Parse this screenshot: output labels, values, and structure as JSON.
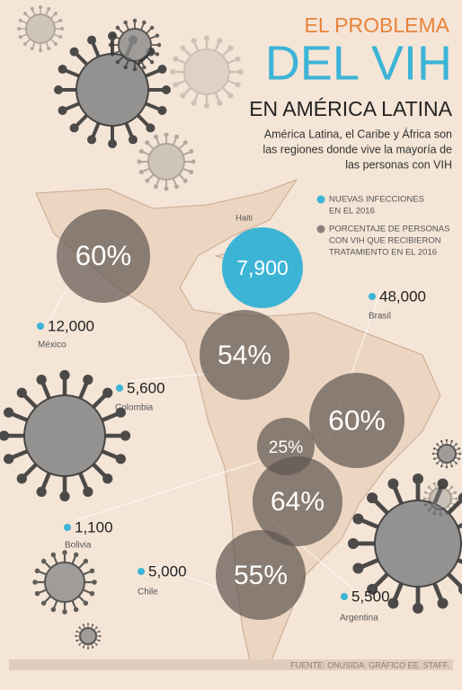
{
  "header": {
    "kicker": "EL PROBLEMA",
    "title": "DEL VIH",
    "subtitle": "EN AMÉRICA LATINA",
    "description": [
      "América Latina, el Caribe y África son",
      "las regiones donde vive la mayoría de",
      "las personas con VIH"
    ]
  },
  "legend": [
    {
      "lines": [
        "NUEVAS INFECCIONES",
        "EN EL 2016"
      ]
    },
    {
      "lines": [
        "PORCENTAJE DE PERSONAS",
        "CON VIH QUE RECIBIERON",
        "TRATAMIENTO EN EL 2016"
      ]
    }
  ],
  "regions": [
    {
      "name": "México",
      "infections": "12,000",
      "treatment": "60%"
    },
    {
      "name": "Haiti",
      "infections": "7,900"
    },
    {
      "name": "Brasil",
      "infections": "48,000",
      "treatment": "60%"
    },
    {
      "name": "Colombia",
      "infections": "5,600",
      "treatment": "54%"
    },
    {
      "name": "Bolivia",
      "infections": "1,100",
      "treatment": "25%"
    },
    {
      "name": "Argentina",
      "infections": "5,500",
      "treatment": "64%"
    },
    {
      "name": "Chile",
      "infections": "5,000",
      "treatment": "55%"
    }
  ],
  "footer": "FUENTE: ONUSIDA. GRÁFICO EE. STAFF."
}
